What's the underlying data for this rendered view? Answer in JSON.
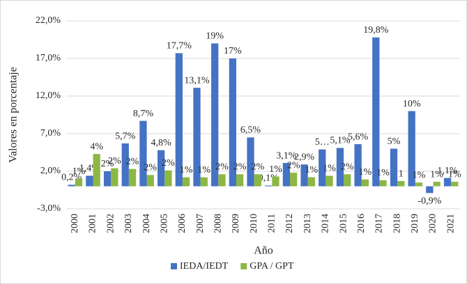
{
  "chart_data": {
    "type": "bar",
    "y_label": "Valores en porcentaje",
    "x_label": "Año",
    "categories": [
      "2000",
      "2001",
      "2002",
      "2003",
      "2004",
      "2005",
      "2006",
      "2007",
      "2008",
      "2009",
      "2010",
      "2011",
      "2012",
      "2013",
      "2014",
      "2015",
      "2016",
      "2017",
      "2018",
      "2019",
      "2020",
      "2021"
    ],
    "series": [
      {
        "name": "IEDA/IEDT",
        "color": "#4472c4",
        "values": [
          0.2,
          1.4,
          2,
          5.7,
          8.7,
          4.8,
          17.7,
          13.1,
          19,
          17,
          6.5,
          0.1,
          3.1,
          2.9,
          4.9,
          5.1,
          5.6,
          19.8,
          5,
          10,
          -0.9,
          1.1
        ],
        "value_labels": [
          "0,2%",
          "1,4%",
          "2%",
          "5,7%",
          "8,7%",
          "4,8%",
          "17,7%",
          "13,1%",
          "19%",
          "17%",
          "6,5%",
          "0,1%",
          "3,1%",
          "2,9%",
          "5…",
          "5,1%",
          "5,6%",
          "19,8%",
          "5%",
          "10%",
          "-0,9%",
          "1,1%"
        ]
      },
      {
        "name": "GPA / GPT",
        "color": "#8db744",
        "values": [
          1,
          4.3,
          2.4,
          2.3,
          1.5,
          2.1,
          1.2,
          1.2,
          1.6,
          1.6,
          1.6,
          1.3,
          1.8,
          1.2,
          1.4,
          1.6,
          0.9,
          0.8,
          0.7,
          0.5,
          0.6,
          0.6
        ],
        "value_labels": [
          "1%",
          "4%",
          "2%",
          "2%",
          "2%",
          "2%",
          "1%",
          "1%",
          "2%",
          "2%",
          "2%",
          "1%",
          "2%",
          "1%",
          "1%",
          "2%",
          "1%",
          "1%",
          "1",
          "1%",
          "1%",
          "1%"
        ]
      }
    ],
    "ylim": [
      -3,
      22
    ],
    "yticks": [
      {
        "value": -3,
        "label": "-3,0%"
      },
      {
        "value": 2,
        "label": "2,0%"
      },
      {
        "value": 7,
        "label": "7,0%"
      },
      {
        "value": 12,
        "label": "12,0%"
      },
      {
        "value": 17,
        "label": "17,0%"
      },
      {
        "value": 22,
        "label": "22,0%"
      }
    ],
    "grid": true,
    "legend": "bottom"
  }
}
